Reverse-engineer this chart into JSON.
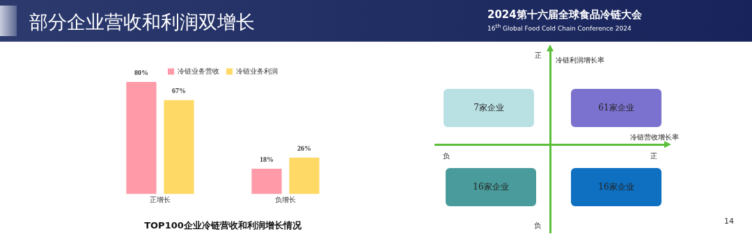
{
  "chart_data": [
    {
      "type": "bar",
      "title": "TOP100企业冷链营收和利润增长情况",
      "categories": [
        "正增长",
        "负增长"
      ],
      "series": [
        {
          "name": "冷链业务营收",
          "color": "#ff9aa8",
          "values": [
            80,
            18
          ],
          "value_labels": [
            "80%",
            "18%"
          ]
        },
        {
          "name": "冷链业务利润",
          "color": "#ffd966",
          "values": [
            67,
            26
          ],
          "value_labels": [
            "67%",
            "26%"
          ]
        }
      ],
      "tick_labels": "x",
      "legend": "top",
      "grid": false,
      "annotations": [
        "部分企业营收和利润双增长",
        "2024第十六届全球食品冷链大会",
        "16$^{th}$ Global Food Cold Chain Conference 2024",
        "14"
      ]
    },
    {
      "type": "other",
      "xlabel": "冷链营收增长率",
      "ylabel": "冷链利润增长率",
      "categories": [
        "7家企业",
        "61家企业",
        "16家企业",
        "16家企业"
      ],
      "colors": [
        "#b9e0e3",
        "#7b72cf",
        "#4a9b9b",
        "#0f6fc0"
      ],
      "annotations": [
        "正",
        "负",
        "正",
        "负"
      ]
    }
  ]
}
